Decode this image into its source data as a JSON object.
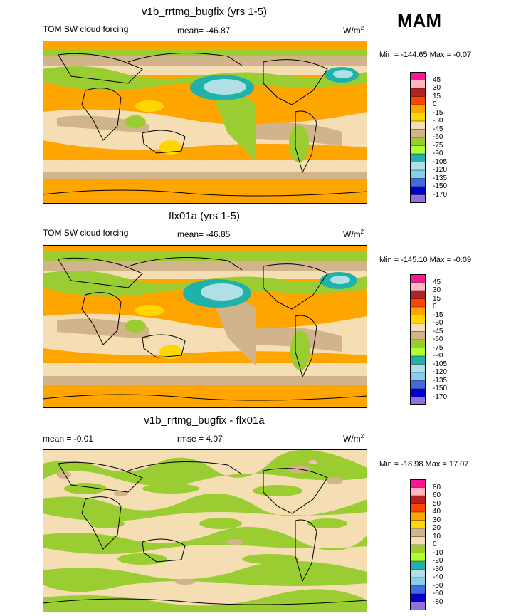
{
  "season": "MAM",
  "panels": [
    {
      "title": "v1b_rrtmg_bugfix (yrs 1-5)",
      "left_label": "TOM SW cloud forcing",
      "stat_label": "mean=",
      "stat_value": "-46.87",
      "units_base": "W/m",
      "units_exp": "2",
      "min_label": "Min =",
      "min_value": "-144.65",
      "max_label": "Max =",
      "max_value": "-0.07",
      "legend": {
        "colors": [
          "#ff1493",
          "#ffb6c1",
          "#b22222",
          "#ff4500",
          "#ffa500",
          "#ffd700",
          "#f5deb3",
          "#d2b48c",
          "#9acd32",
          "#adff2f",
          "#20b2aa",
          "#b0e0e6",
          "#87ceeb",
          "#4169e1",
          "#0000cd",
          "#9370db"
        ],
        "labels": [
          "45",
          "30",
          "15",
          "0",
          "-15",
          "-30",
          "-45",
          "-60",
          "-75",
          "-90",
          "-105",
          "-120",
          "-135",
          "-150",
          "-170"
        ]
      }
    },
    {
      "title": "flx01a (yrs 1-5)",
      "left_label": "TOM SW cloud forcing",
      "stat_label": "mean=",
      "stat_value": "-46.85",
      "units_base": "W/m",
      "units_exp": "2",
      "min_label": "Min =",
      "min_value": "-145.10",
      "max_label": "Max =",
      "max_value": "-0.09",
      "legend": {
        "colors": [
          "#ff1493",
          "#ffb6c1",
          "#b22222",
          "#ff4500",
          "#ffa500",
          "#ffd700",
          "#f5deb3",
          "#d2b48c",
          "#9acd32",
          "#adff2f",
          "#20b2aa",
          "#b0e0e6",
          "#87ceeb",
          "#4169e1",
          "#0000cd",
          "#9370db"
        ],
        "labels": [
          "45",
          "30",
          "15",
          "0",
          "-15",
          "-30",
          "-45",
          "-60",
          "-75",
          "-90",
          "-105",
          "-120",
          "-135",
          "-150",
          "-170"
        ]
      }
    },
    {
      "title": "v1b_rrtmg_bugfix - flx01a",
      "left_label": "mean =  -0.01",
      "stat_label": "rmse =",
      "stat_value": "4.07",
      "units_base": "W/m",
      "units_exp": "2",
      "min_label": "Min =",
      "min_value": "-18.98",
      "max_label": "Max =",
      "max_value": "17.07",
      "legend": {
        "colors": [
          "#ff1493",
          "#ffb6c1",
          "#b22222",
          "#ff4500",
          "#ffa500",
          "#ffd700",
          "#d2b48c",
          "#f5deb3",
          "#9acd32",
          "#adff2f",
          "#20b2aa",
          "#b0e0e6",
          "#87ceeb",
          "#4169e1",
          "#0000cd",
          "#9370db"
        ],
        "labels": [
          "80",
          "60",
          "50",
          "40",
          "30",
          "20",
          "10",
          "0",
          "-10",
          "-20",
          "-30",
          "-40",
          "-50",
          "-60",
          "-80"
        ]
      }
    }
  ],
  "chart_data": [
    {
      "type": "heatmap",
      "title": "v1b_rrtmg_bugfix (yrs 1-5)",
      "variable": "TOM SW cloud forcing",
      "units": "W/m2",
      "mean": -46.87,
      "min": -144.65,
      "max": -0.07,
      "contour_levels": [
        45,
        30,
        15,
        0,
        -15,
        -30,
        -45,
        -60,
        -75,
        -90,
        -105,
        -120,
        -135,
        -150,
        -170
      ]
    },
    {
      "type": "heatmap",
      "title": "flx01a (yrs 1-5)",
      "variable": "TOM SW cloud forcing",
      "units": "W/m2",
      "mean": -46.85,
      "min": -145.1,
      "max": -0.09,
      "contour_levels": [
        45,
        30,
        15,
        0,
        -15,
        -30,
        -45,
        -60,
        -75,
        -90,
        -105,
        -120,
        -135,
        -150,
        -170
      ]
    },
    {
      "type": "heatmap",
      "title": "v1b_rrtmg_bugfix - flx01a",
      "units": "W/m2",
      "mean": -0.01,
      "rmse": 4.07,
      "min": -18.98,
      "max": 17.07,
      "contour_levels": [
        80,
        60,
        50,
        40,
        30,
        20,
        10,
        0,
        -10,
        -20,
        -30,
        -40,
        -50,
        -60,
        -80
      ]
    }
  ]
}
